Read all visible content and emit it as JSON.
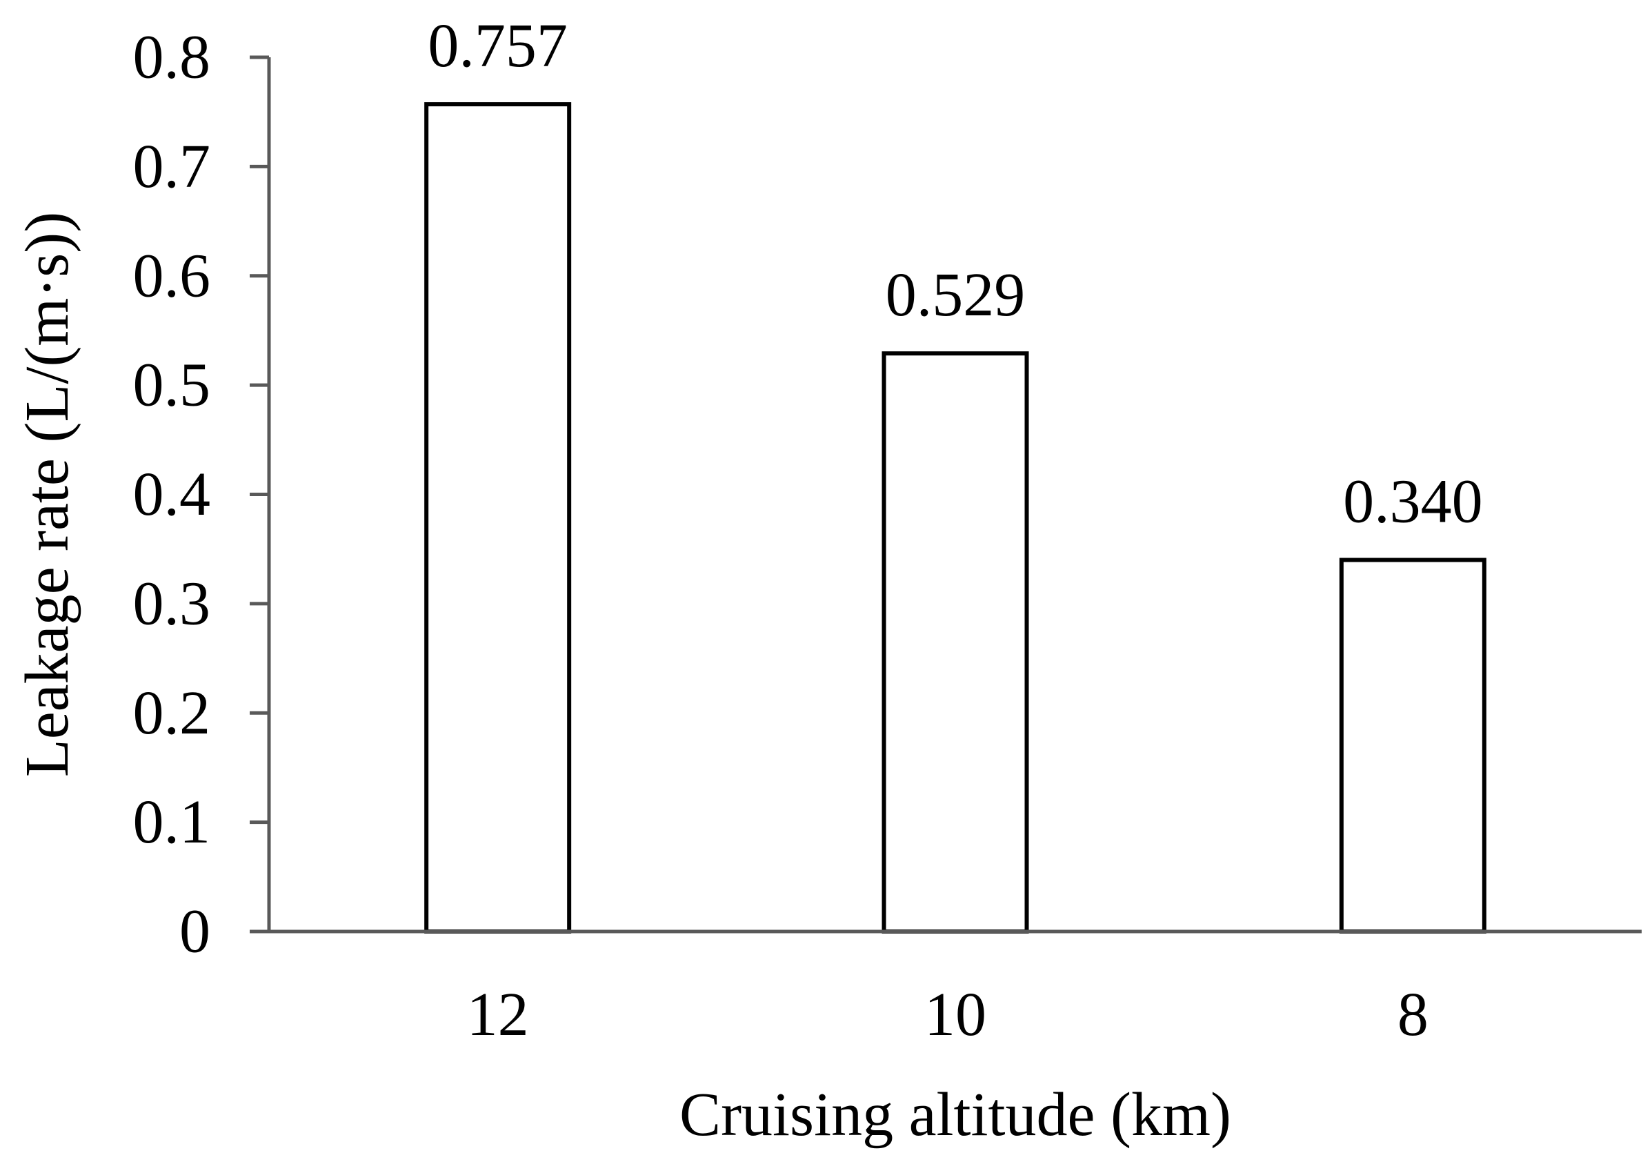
{
  "chart_data": {
    "type": "bar",
    "categories": [
      "12",
      "10",
      "8"
    ],
    "values": [
      0.757,
      0.529,
      0.34
    ],
    "data_labels": [
      "0.757",
      "0.529",
      "0.340"
    ],
    "title": "",
    "xlabel": "Cruising altitude (km)",
    "ylabel": "Leakage rate (L/(m·s))",
    "ylim": [
      0,
      0.8
    ],
    "yticks": [
      0,
      0.1,
      0.2,
      0.3,
      0.4,
      0.5,
      0.6,
      0.7,
      0.8
    ],
    "ytick_labels": [
      "0",
      "0.1",
      "0.2",
      "0.3",
      "0.4",
      "0.5",
      "0.6",
      "0.7",
      "0.8"
    ],
    "grid": false,
    "legend": "none",
    "bar_fill": "#ffffff",
    "bar_stroke": "#000000",
    "axis_color": "#595959"
  }
}
